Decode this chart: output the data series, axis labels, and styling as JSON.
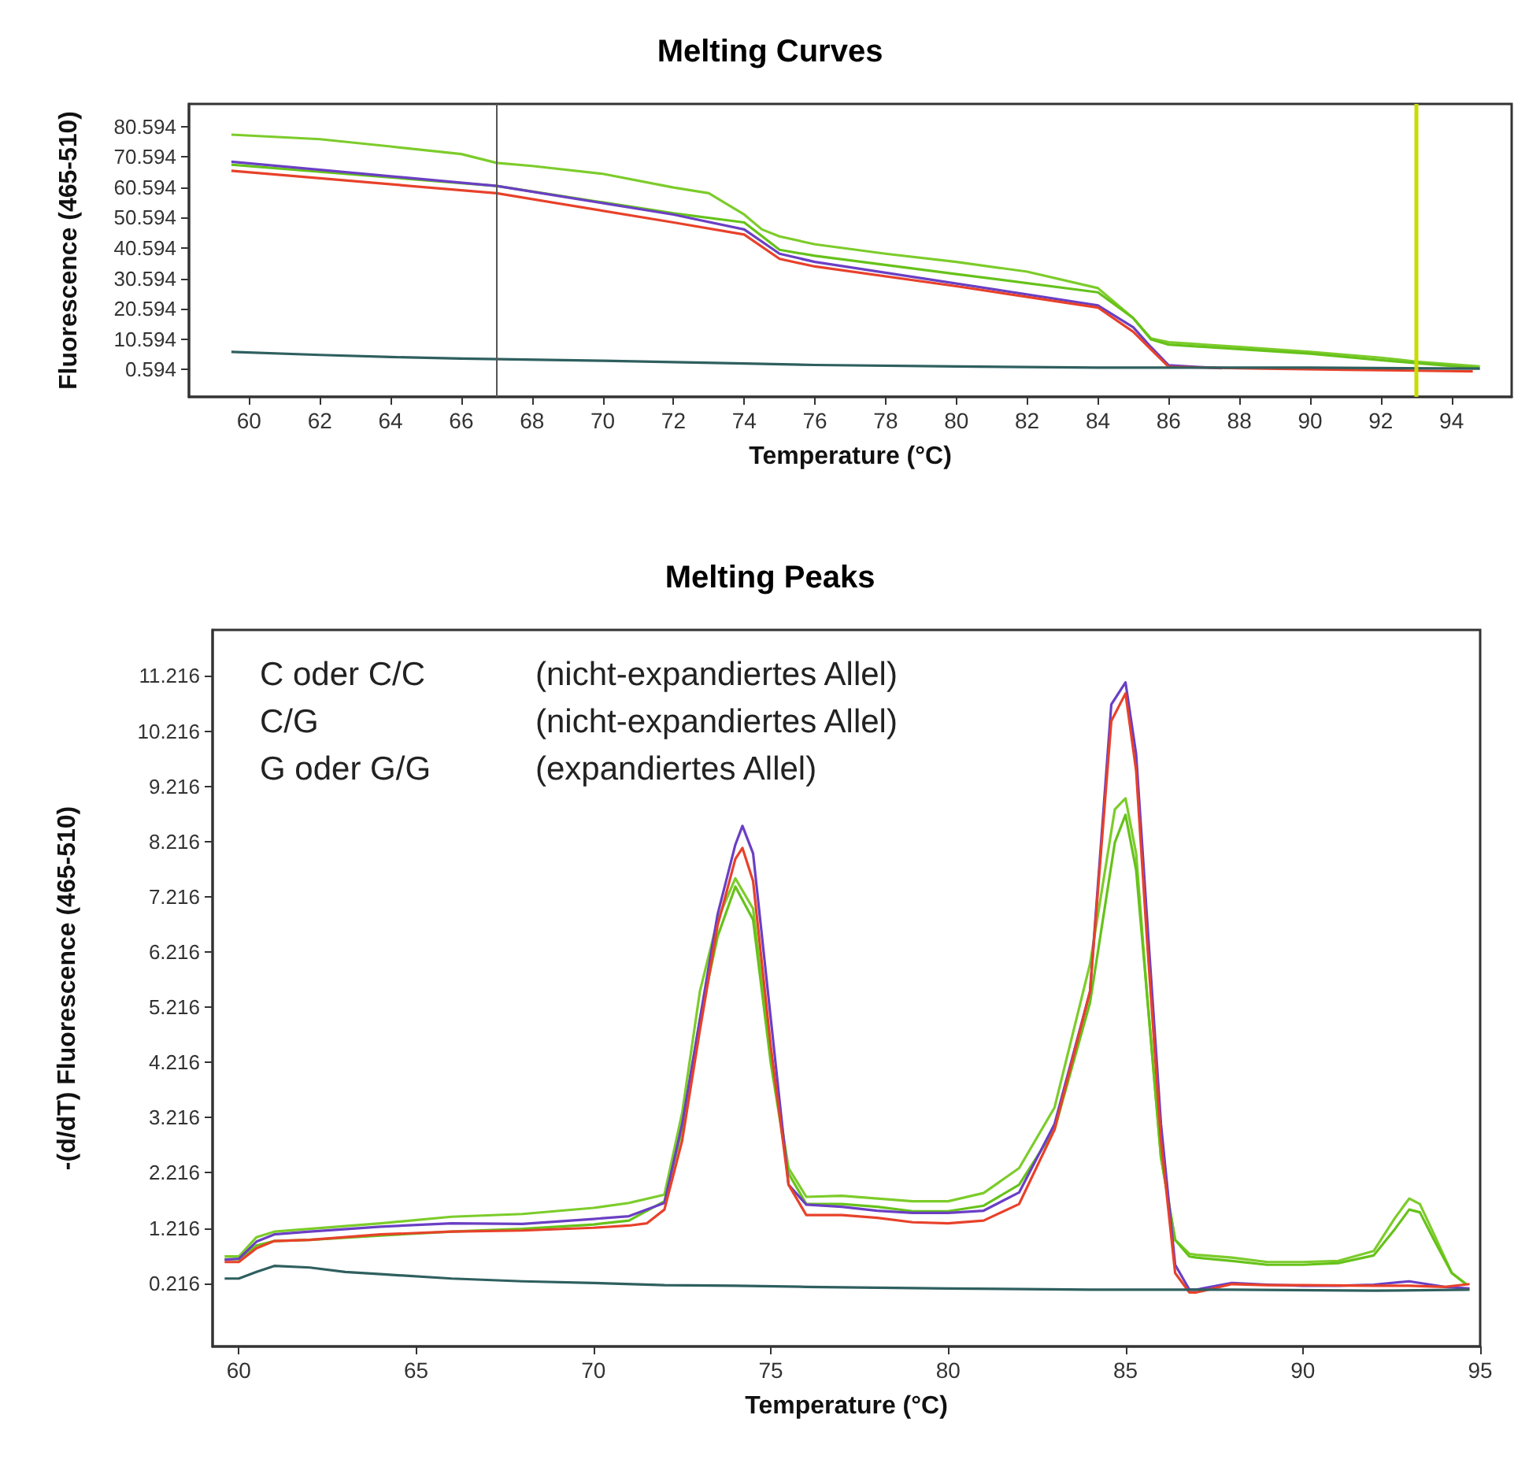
{
  "chart_data": [
    {
      "type": "line",
      "title": "Melting Curves",
      "xlabel": "Temperature (°C)",
      "ylabel": "Fluorescence (465-510)",
      "xlim": [
        58.3,
        95.7
      ],
      "xticks": [
        60,
        62,
        64,
        66,
        68,
        70,
        72,
        74,
        76,
        78,
        80,
        82,
        84,
        86,
        88,
        90,
        92,
        94
      ],
      "ylim": [
        -8.4,
        88.0
      ],
      "yticks": [
        0.594,
        10.594,
        20.594,
        30.594,
        40.594,
        50.594,
        60.594,
        70.594,
        80.594
      ],
      "grid": false,
      "ref_lines": [
        {
          "axis": "x",
          "value": 67,
          "color": "#555555"
        },
        {
          "axis": "x",
          "value": 93,
          "color": "#c8dc00"
        }
      ],
      "series": [
        {
          "color": "#7ccc2a",
          "x": [
            59.5,
            62,
            64,
            66,
            67,
            68,
            70,
            72,
            73,
            74,
            74.5,
            75,
            76,
            78,
            80,
            82,
            84,
            85,
            85.5,
            86,
            88,
            90,
            92,
            93,
            94.8
          ],
          "values": [
            77.9,
            76.4,
            74,
            71.5,
            68.6,
            67.6,
            65,
            60.5,
            58.6,
            51.6,
            46.7,
            44.4,
            41.8,
            38.7,
            36,
            32.8,
            27.4,
            17.5,
            10.8,
            9.6,
            8,
            6.4,
            4.5,
            3.2,
            1.6
          ]
        },
        {
          "color": "#66c21a",
          "x": [
            59.5,
            67,
            72,
            74,
            75,
            76,
            80,
            84,
            85,
            85.5,
            86,
            88,
            90,
            92,
            93,
            94.8
          ],
          "values": [
            68,
            61,
            52,
            49,
            40,
            38,
            32,
            26,
            17.5,
            10.5,
            8.8,
            7.3,
            5.8,
            3.7,
            2.7,
            1
          ]
        },
        {
          "color": "#6a3fc4",
          "x": [
            59.5,
            67,
            72,
            74,
            75,
            76,
            80,
            84,
            85,
            85.5,
            86,
            87.5
          ],
          "values": [
            69,
            61,
            51.6,
            46.7,
            38.7,
            36,
            28.9,
            21.7,
            14.5,
            8,
            2,
            1
          ]
        },
        {
          "color": "#e8412a",
          "x": [
            59.5,
            67,
            72,
            74,
            75,
            76,
            80,
            84,
            85,
            86,
            88,
            91,
            94.6
          ],
          "values": [
            66,
            58.6,
            49,
            45,
            37,
            34.5,
            28,
            21,
            13,
            1.5,
            1,
            0.5,
            0
          ]
        },
        {
          "color": "#2f5f5f",
          "x": [
            59.5,
            62,
            64,
            66,
            70,
            74,
            76,
            80,
            84,
            90,
            94.8
          ],
          "values": [
            6.4,
            5.4,
            4.7,
            4.2,
            3.5,
            2.6,
            2.1,
            1.6,
            1.2,
            1.2,
            0.9
          ]
        }
      ]
    },
    {
      "type": "line",
      "title": "Melting Peaks",
      "xlabel": "Temperature (°C)",
      "ylabel": "-(d/dT) Fluorescence (465-510)",
      "xlim": [
        59.26,
        95
      ],
      "xticks": [
        60,
        65,
        70,
        75,
        80,
        85,
        90,
        95
      ],
      "ylim": [
        -0.93,
        12.05
      ],
      "yticks": [
        0.216,
        1.216,
        2.216,
        3.216,
        4.216,
        5.216,
        6.216,
        7.216,
        8.216,
        9.216,
        10.216,
        11.216
      ],
      "grid": false,
      "annotations": [
        "C oder C/C",
        "(nicht-expandiertes Allel)",
        "C/G",
        "(nicht-expandiertes Allel)",
        "G oder G/G",
        "(expandiertes Allel)"
      ],
      "series": [
        {
          "color": "#7ccc2a",
          "x": [
            59.6,
            60,
            60.5,
            61,
            62,
            64,
            66,
            68,
            70,
            71,
            72,
            72.5,
            73,
            73.5,
            74,
            74.5,
            75,
            75.5,
            76,
            77,
            78,
            79,
            80,
            81,
            82,
            83,
            84,
            84.7,
            85,
            85.3,
            85.6,
            86,
            86.4,
            86.8,
            87,
            88,
            89,
            90,
            91,
            92,
            92.6,
            93,
            93.3,
            93.7,
            94.2,
            94.6
          ],
          "values": [
            0.7,
            0.7,
            1.05,
            1.15,
            1.2,
            1.3,
            1.42,
            1.47,
            1.58,
            1.67,
            1.82,
            3.3,
            5.5,
            6.8,
            7.55,
            7.0,
            4.3,
            2.3,
            1.78,
            1.8,
            1.75,
            1.7,
            1.7,
            1.85,
            2.3,
            3.4,
            6.0,
            8.8,
            9.0,
            8.0,
            5.5,
            2.5,
            1.0,
            0.75,
            0.73,
            0.68,
            0.6,
            0.6,
            0.62,
            0.8,
            1.4,
            1.75,
            1.65,
            1.1,
            0.4,
            0.2
          ]
        },
        {
          "color": "#66c21a",
          "x": [
            59.6,
            60,
            60.5,
            61,
            62,
            64,
            66,
            68,
            70,
            71,
            72,
            72.5,
            73,
            73.5,
            74,
            74.5,
            75,
            75.5,
            76,
            77,
            78,
            79,
            80,
            81,
            82,
            83,
            84,
            84.7,
            85,
            85.3,
            85.6,
            86,
            86.4,
            86.8,
            87,
            88,
            89,
            90,
            91,
            92,
            92.6,
            93,
            93.3,
            93.7,
            94.2,
            94.6
          ],
          "values": [
            0.65,
            0.65,
            0.9,
            0.98,
            1.0,
            1.08,
            1.15,
            1.2,
            1.28,
            1.35,
            1.7,
            3.0,
            5.0,
            6.5,
            7.4,
            6.8,
            4.2,
            2.2,
            1.65,
            1.65,
            1.6,
            1.52,
            1.52,
            1.62,
            2.0,
            3.0,
            5.3,
            8.2,
            8.7,
            7.7,
            5.5,
            2.5,
            1.0,
            0.7,
            0.68,
            0.62,
            0.55,
            0.55,
            0.58,
            0.72,
            1.2,
            1.55,
            1.5,
            1.0,
            0.4,
            0.2
          ]
        },
        {
          "color": "#6a3fc4",
          "x": [
            59.6,
            60,
            60.5,
            61,
            62,
            64,
            66,
            68,
            70,
            71,
            72,
            72.5,
            73,
            73.5,
            74,
            74.2,
            74.5,
            75,
            75.5,
            76,
            77,
            78,
            79,
            80,
            81,
            82,
            83,
            84,
            84.6,
            85,
            85.3,
            85.6,
            86,
            86.4,
            86.8,
            87,
            88,
            89,
            90,
            91,
            92,
            93,
            94,
            94.7
          ],
          "values": [
            0.64,
            0.66,
            0.97,
            1.1,
            1.15,
            1.24,
            1.3,
            1.29,
            1.38,
            1.43,
            1.67,
            3.1,
            5.0,
            6.9,
            8.16,
            8.5,
            8.0,
            5.0,
            2.0,
            1.64,
            1.6,
            1.53,
            1.49,
            1.49,
            1.53,
            1.86,
            3.1,
            5.5,
            10.7,
            11.1,
            9.8,
            6.9,
            3.1,
            0.55,
            0.1,
            0.1,
            0.22,
            0.19,
            0.17,
            0.17,
            0.19,
            0.25,
            0.15,
            0.12
          ]
        },
        {
          "color": "#e8412a",
          "x": [
            59.6,
            60,
            60.5,
            61,
            62,
            64,
            66,
            68,
            70,
            71,
            71.5,
            72,
            72.5,
            73,
            73.5,
            74,
            74.2,
            74.5,
            75,
            75.5,
            76,
            77,
            78,
            79,
            80,
            81,
            82,
            83,
            84,
            84.6,
            85,
            85.3,
            85.6,
            86,
            86.4,
            86.8,
            87,
            88,
            89,
            90,
            92,
            93,
            94,
            94.7
          ],
          "values": [
            0.6,
            0.6,
            0.85,
            0.98,
            1.0,
            1.1,
            1.15,
            1.17,
            1.22,
            1.26,
            1.3,
            1.55,
            2.8,
            4.8,
            6.7,
            7.9,
            8.1,
            7.5,
            4.5,
            2.0,
            1.45,
            1.45,
            1.4,
            1.32,
            1.3,
            1.35,
            1.65,
            3.0,
            5.5,
            10.4,
            10.9,
            9.5,
            6.5,
            2.8,
            0.4,
            0.05,
            0.05,
            0.2,
            0.18,
            0.18,
            0.17,
            0.17,
            0.15,
            0.2
          ]
        },
        {
          "color": "#2f5f5f",
          "x": [
            59.6,
            60,
            60.5,
            61,
            62,
            63,
            64,
            66,
            68,
            70,
            72,
            74,
            76,
            80,
            84,
            88,
            92,
            94.7
          ],
          "values": [
            0.3,
            0.3,
            0.42,
            0.53,
            0.5,
            0.42,
            0.38,
            0.3,
            0.25,
            0.22,
            0.18,
            0.17,
            0.15,
            0.12,
            0.1,
            0.1,
            0.08,
            0.1
          ]
        }
      ]
    }
  ]
}
